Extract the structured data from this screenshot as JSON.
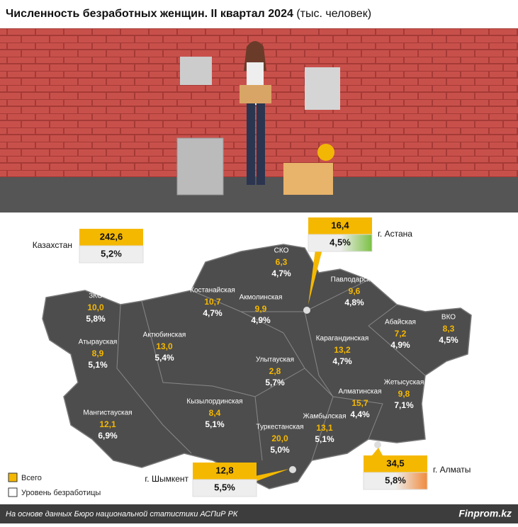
{
  "header": {
    "title": "Численность безработных женщин. II квартал 2024",
    "unit": "(тыс. человек)"
  },
  "country": {
    "name": "Казахстан",
    "total": "242,6",
    "rate": "5,2%"
  },
  "cities": [
    {
      "name": "г. Астана",
      "total": "16,4",
      "rate": "4,5%"
    },
    {
      "name": "г. Шымкент",
      "total": "12,8",
      "rate": "5,5%"
    },
    {
      "name": "г. Алматы",
      "total": "34,5",
      "rate": "5,8%"
    }
  ],
  "regions": [
    {
      "name": "ЗКО",
      "total": "10,0",
      "rate": "5,8%"
    },
    {
      "name": "Атырауская",
      "total": "8,9",
      "rate": "5,1%"
    },
    {
      "name": "Мангистауская",
      "total": "12,1",
      "rate": "6,9%"
    },
    {
      "name": "Актюбинская",
      "total": "13,0",
      "rate": "5,4%"
    },
    {
      "name": "Костанайская",
      "total": "10,7",
      "rate": "4,7%"
    },
    {
      "name": "СКО",
      "total": "6,3",
      "rate": "4,7%"
    },
    {
      "name": "Акмолинская",
      "total": "9,9",
      "rate": "4,9%"
    },
    {
      "name": "Павлодарская",
      "total": "9,6",
      "rate": "4,8%"
    },
    {
      "name": "Абайская",
      "total": "7,2",
      "rate": "4,9%"
    },
    {
      "name": "ВКО",
      "total": "8,3",
      "rate": "4,5%"
    },
    {
      "name": "Карагандинская",
      "total": "13,2",
      "rate": "4,7%"
    },
    {
      "name": "Улытауская",
      "total": "2,8",
      "rate": "5,7%"
    },
    {
      "name": "Кызылординская",
      "total": "8,4",
      "rate": "5,1%"
    },
    {
      "name": "Туркестанская",
      "total": "20,0",
      "rate": "5,0%"
    },
    {
      "name": "Жамбылская",
      "total": "13,1",
      "rate": "5,1%"
    },
    {
      "name": "Алматинская",
      "total": "15,7",
      "rate": "4,4%"
    },
    {
      "name": "Жетысуская",
      "total": "9,8",
      "rate": "7,1%"
    }
  ],
  "legend": {
    "total": "Всего",
    "rate": "Уровень безработицы"
  },
  "footer": {
    "source": "На основе данных Бюро национальной статистики АСПиР РК",
    "brand": "Finprom.kz"
  }
}
